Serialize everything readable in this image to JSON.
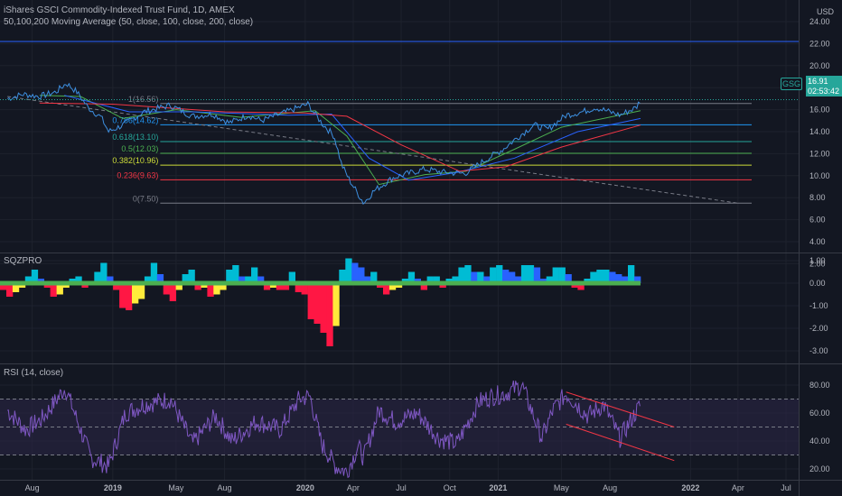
{
  "header": {
    "title": "iShares GSCI Commodity-Indexed Trust Fund, 1D, AMEX",
    "ma_label": "50,100,200 Moving Average (50, close, 100, close, 200, close)",
    "sqz_label": "SQZPRO",
    "rsi_label": "RSI (14, close)"
  },
  "price_axis": {
    "currency": "USD",
    "ticks": [
      "24.00",
      "22.00",
      "20.00",
      "18.00",
      "16.00",
      "14.00",
      "12.00",
      "10.00",
      "8.00",
      "6.00",
      "4.00",
      "2.00"
    ]
  },
  "sqz_axis": {
    "ticks": [
      "1.00",
      "0.00",
      "-1.00",
      "-2.00",
      "-3.00"
    ]
  },
  "rsi_axis": {
    "ticks": [
      "80.00",
      "60.00",
      "40.00",
      "20.00"
    ]
  },
  "time_axis": {
    "labels": [
      "Aug",
      "2019",
      "May",
      "Aug",
      "2020",
      "Apr",
      "Jul",
      "Oct",
      "2021",
      "May",
      "Aug",
      "2022",
      "Apr",
      "Jul"
    ]
  },
  "ticker_badge": {
    "symbol": "GSG",
    "price": "16.91",
    "countdown": "02:53:42"
  },
  "fib_levels": [
    {
      "label": "1(16.56)",
      "value": 16.56,
      "color": "#787b86"
    },
    {
      "label": "0.786(14.62)",
      "value": 14.62,
      "color": "#2196f3"
    },
    {
      "label": "0.618(13.10)",
      "value": 13.1,
      "color": "#26a69a"
    },
    {
      "label": "0.5(12.03)",
      "value": 12.03,
      "color": "#4caf50"
    },
    {
      "label": "0.382(10.96)",
      "value": 10.96,
      "color": "#cddc39"
    },
    {
      "label": "0.236(9.63)",
      "value": 9.63,
      "color": "#f23645"
    },
    {
      "label": "0(7.50)",
      "value": 7.5,
      "color": "#787b86"
    }
  ],
  "colors": {
    "background": "#131722",
    "grid": "#1e222d",
    "price_line": "#2196f3",
    "ma50": "#4caf50",
    "ma100": "#2962ff",
    "ma200": "#f23645",
    "rsi_line": "#7e57c2",
    "rsi_band": "#2a2545",
    "sqz_pos_strong": "#00bcd4",
    "sqz_pos_weak": "#2962ff",
    "sqz_neg_strong": "#ff1744",
    "sqz_neg_weak": "#ffeb3b",
    "sqz_dot_on": "#4caf50",
    "sqz_dot_off": "#f23645",
    "badge": "#26a69a"
  },
  "chart_data": {
    "type": "line",
    "title": "iShares GSCI Commodity-Indexed Trust Fund, 1D, AMEX",
    "x_range": [
      "2018-06",
      "2022-07"
    ],
    "ylim": [
      2,
      24
    ],
    "close_keypoints": [
      [
        "2018-06-15",
        17.0
      ],
      [
        "2018-07-15",
        17.4
      ],
      [
        "2018-08-15",
        17.2
      ],
      [
        "2018-09-15",
        17.6
      ],
      [
        "2018-10-05",
        18.4
      ],
      [
        "2018-10-25",
        17.6
      ],
      [
        "2018-11-15",
        16.2
      ],
      [
        "2018-12-10",
        15.3
      ],
      [
        "2018-12-24",
        14.0
      ],
      [
        "2019-01-20",
        14.6
      ],
      [
        "2019-03-01",
        15.8
      ],
      [
        "2019-04-20",
        16.4
      ],
      [
        "2019-06-01",
        15.4
      ],
      [
        "2019-07-10",
        15.6
      ],
      [
        "2019-08-10",
        14.8
      ],
      [
        "2019-09-15",
        15.5
      ],
      [
        "2019-10-10",
        15.0
      ],
      [
        "2019-11-15",
        15.6
      ],
      [
        "2020-01-06",
        16.5
      ],
      [
        "2020-02-01",
        14.8
      ],
      [
        "2020-02-25",
        13.6
      ],
      [
        "2020-03-10",
        11.0
      ],
      [
        "2020-03-25",
        9.6
      ],
      [
        "2020-04-21",
        7.5
      ],
      [
        "2020-05-10",
        8.6
      ],
      [
        "2020-06-15",
        9.8
      ],
      [
        "2020-07-15",
        10.2
      ],
      [
        "2020-08-15",
        10.6
      ],
      [
        "2020-09-20",
        10.3
      ],
      [
        "2020-10-30",
        10.2
      ],
      [
        "2020-11-30",
        11.2
      ],
      [
        "2021-01-10",
        12.4
      ],
      [
        "2021-02-10",
        13.6
      ],
      [
        "2021-03-10",
        14.6
      ],
      [
        "2021-04-05",
        14.2
      ],
      [
        "2021-05-10",
        15.5
      ],
      [
        "2021-06-10",
        15.8
      ],
      [
        "2021-07-05",
        16.2
      ],
      [
        "2021-08-20",
        15.5
      ],
      [
        "2021-09-20",
        16.2
      ],
      [
        "2021-09-28",
        16.91
      ]
    ],
    "ma_series": [
      {
        "name": "MA 50",
        "keypoints": [
          [
            "2018-08-15",
            17.3
          ],
          [
            "2018-11-01",
            17.2
          ],
          [
            "2019-01-20",
            15.2
          ],
          [
            "2019-05-01",
            16.0
          ],
          [
            "2019-09-01",
            15.3
          ],
          [
            "2020-01-20",
            15.9
          ],
          [
            "2020-03-20",
            13.6
          ],
          [
            "2020-05-20",
            9.2
          ],
          [
            "2020-08-15",
            10.1
          ],
          [
            "2020-11-01",
            10.4
          ],
          [
            "2021-02-01",
            12.4
          ],
          [
            "2021-05-01",
            14.4
          ],
          [
            "2021-09-28",
            15.9
          ]
        ]
      },
      {
        "name": "MA 100",
        "keypoints": [
          [
            "2018-10-01",
            17.3
          ],
          [
            "2019-02-01",
            15.8
          ],
          [
            "2019-06-01",
            15.8
          ],
          [
            "2019-12-01",
            15.5
          ],
          [
            "2020-02-20",
            15.6
          ],
          [
            "2020-05-01",
            11.6
          ],
          [
            "2020-07-15",
            9.6
          ],
          [
            "2020-10-15",
            10.3
          ],
          [
            "2021-02-01",
            11.6
          ],
          [
            "2021-06-01",
            14.0
          ],
          [
            "2021-09-28",
            15.2
          ]
        ]
      },
      {
        "name": "MA 200",
        "keypoints": [
          [
            "2018-08-15",
            16.6
          ],
          [
            "2019-01-01",
            16.5
          ],
          [
            "2019-08-01",
            15.8
          ],
          [
            "2020-01-01",
            15.7
          ],
          [
            "2020-03-20",
            15.4
          ],
          [
            "2020-07-01",
            12.8
          ],
          [
            "2020-10-20",
            10.4
          ],
          [
            "2021-01-15",
            10.8
          ],
          [
            "2021-05-01",
            12.6
          ],
          [
            "2021-09-28",
            14.6
          ]
        ]
      }
    ],
    "trendline": {
      "from": [
        "2018-06-15",
        17.2
      ],
      "to": [
        "2022-04-01",
        7.5
      ]
    },
    "resistance_level": 22.2,
    "sqzpro_histogram": {
      "ylim": [
        -3.4,
        1.3
      ],
      "values": [
        -0.3,
        -0.6,
        -0.4,
        -0.2,
        0.3,
        0.6,
        0.2,
        -0.2,
        -0.6,
        -0.5,
        -0.2,
        0.2,
        0.3,
        -0.2,
        -0.1,
        0.5,
        0.9,
        0.3,
        -0.3,
        -1.1,
        -1.2,
        -0.9,
        -0.7,
        0.3,
        0.9,
        0.4,
        -0.5,
        -0.8,
        -0.3,
        0.4,
        0.6,
        -0.3,
        -0.2,
        -0.6,
        -0.5,
        -0.3,
        0.6,
        0.8,
        0.3,
        0.3,
        0.7,
        0.3,
        -0.3,
        -0.2,
        -0.3,
        -0.3,
        0.5,
        -0.4,
        -0.5,
        -1.6,
        -1.8,
        -2.2,
        -2.8,
        -1.9,
        0.6,
        1.1,
        0.9,
        0.7,
        0.3,
        0.5,
        -0.2,
        -0.5,
        -0.3,
        -0.2,
        0.2,
        0.5,
        0.2,
        -0.3,
        0.3,
        0.3,
        -0.2,
        0.2,
        0.3,
        0.7,
        0.8,
        0.5,
        0.5,
        0.3,
        0.7,
        0.8,
        0.6,
        0.5,
        0.3,
        0.8,
        0.8,
        0.7,
        0.2,
        0.3,
        0.7,
        0.7,
        0.4,
        -0.2,
        -0.3,
        0.2,
        0.5,
        0.6,
        0.6,
        0.5,
        0.4,
        0.3,
        0.8,
        0.3
      ]
    },
    "rsi": {
      "ylim": [
        10,
        90
      ],
      "levels": [
        70,
        50,
        30
      ],
      "keypoints": [
        [
          "2018-06-15",
          62
        ],
        [
          "2018-07-20",
          48
        ],
        [
          "2018-08-20",
          56
        ],
        [
          "2018-10-03",
          78
        ],
        [
          "2018-11-20",
          28
        ],
        [
          "2018-12-24",
          22
        ],
        [
          "2019-01-25",
          60
        ],
        [
          "2019-03-01",
          66
        ],
        [
          "2019-04-20",
          70
        ],
        [
          "2019-06-01",
          38
        ],
        [
          "2019-07-15",
          58
        ],
        [
          "2019-08-15",
          40
        ],
        [
          "2019-10-01",
          54
        ],
        [
          "2019-11-15",
          48
        ],
        [
          "2019-12-20",
          70
        ],
        [
          "2020-01-10",
          72
        ],
        [
          "2020-02-01",
          38
        ],
        [
          "2020-02-28",
          22
        ],
        [
          "2020-03-20",
          18
        ],
        [
          "2020-04-10",
          36
        ],
        [
          "2020-04-21",
          28
        ],
        [
          "2020-05-20",
          62
        ],
        [
          "2020-06-20",
          54
        ],
        [
          "2020-08-01",
          60
        ],
        [
          "2020-09-10",
          42
        ],
        [
          "2020-10-15",
          38
        ],
        [
          "2020-11-25",
          68
        ],
        [
          "2020-12-20",
          72
        ],
        [
          "2021-01-15",
          74
        ],
        [
          "2021-02-15",
          80
        ],
        [
          "2021-03-25",
          42
        ],
        [
          "2021-04-15",
          62
        ],
        [
          "2021-05-10",
          74
        ],
        [
          "2021-06-20",
          58
        ],
        [
          "2021-07-20",
          66
        ],
        [
          "2021-08-20",
          42
        ],
        [
          "2021-09-28",
          66
        ]
      ]
    },
    "rsi_channel": {
      "upper": {
        "from": [
          "2021-05-10",
          75
        ],
        "to": [
          "2021-12-01",
          50
        ]
      },
      "lower": {
        "from": [
          "2021-05-10",
          52
        ],
        "to": [
          "2021-12-01",
          26
        ]
      }
    }
  }
}
